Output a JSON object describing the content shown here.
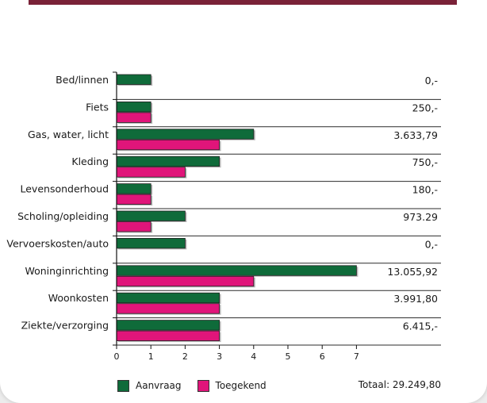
{
  "chart_data": {
    "type": "bar",
    "orientation": "horizontal",
    "categories": [
      "Bed/linnen",
      "Fiets",
      "Gas, water, licht",
      "Kleding",
      "Levensonderhoud",
      "Scholing/opleiding",
      "Vervoerskosten/auto",
      "Woninginrichting",
      "Woonkosten",
      "Ziekte/verzorging"
    ],
    "series": [
      {
        "name": "Aanvraag",
        "color": "#0f6b3a",
        "values": [
          1,
          1,
          4,
          3,
          1,
          2,
          2,
          7,
          3,
          3
        ]
      },
      {
        "name": "Toegekend",
        "color": "#e0157a",
        "values": [
          0,
          1,
          3,
          2,
          1,
          1,
          0,
          4,
          3,
          3
        ]
      }
    ],
    "amounts": [
      "0,-",
      "250,-",
      "3.633,79",
      "750,-",
      "180,-",
      "973.29",
      "0,-",
      "13.055,92",
      "3.991,80",
      "6.415,-"
    ],
    "xticks": [
      0,
      1,
      2,
      3,
      4,
      5,
      6,
      7
    ],
    "xlim": [
      0,
      7
    ],
    "grid": "horizontal separators",
    "legend_position": "bottom-left"
  },
  "total_label": "Totaal: 29.249,80"
}
